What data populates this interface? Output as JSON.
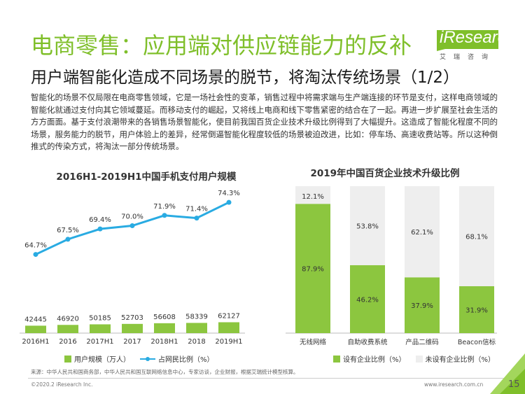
{
  "header": {
    "title": "电商零售：应用端对供应链能力的反补",
    "subtitle": "用户端智能化造成不同场景的脱节，将淘汰传统场景（1/2）",
    "logo_text": "iResearch",
    "logo_sub": "艾瑞咨询"
  },
  "body": {
    "text": "智能化的场景不仅局限在电商零售领域，它是一场社会性的变革，销售过程中将需求端与生产端连接的环节是支付，这样电商领域的智能化就通过支付向其它领域蔓延。而移动支付的崛起，又将线上电商和线下零售紧密的结合在了一起。再进一步扩展至社会生活的方方面面。基于支付浪潮带来的各销售场景智能化，使目前我国百货企业技术升级比例得到了大幅提升。这造成了智能化程度不同的场景，服务能力的脱节，用户体验上的差异，经常倒逼智能化程度较低的场景被迫改进，比如：停车场、高速收费站等。所以这种倒推式的传染方式，将淘汰一部分传统场景。"
  },
  "chart_data": [
    {
      "type": "bar+line",
      "title": "2016H1-2019H1中国手机支付用户规模",
      "categories": [
        "2016H1",
        "2016",
        "2017H1",
        "2017",
        "2018H1",
        "2018",
        "2019H1"
      ],
      "series": [
        {
          "name": "用户规模（万人）",
          "type": "bar",
          "values": [
            42445,
            46920,
            50185,
            52703,
            56608,
            58339,
            62127
          ],
          "labels": [
            "42445",
            "46920",
            "50185",
            "52703",
            "56608",
            "58339",
            "62127"
          ]
        },
        {
          "name": "占网民比例（%）",
          "type": "line",
          "values": [
            64.7,
            67.5,
            69.4,
            70.0,
            71.9,
            71.4,
            74.3
          ],
          "labels": [
            "64.7%",
            "67.5%",
            "69.4%",
            "70.0%",
            "71.9%",
            "71.4%",
            "74.3%"
          ]
        }
      ],
      "colors": {
        "bar": "#8cc63f",
        "line": "#29abe2"
      }
    },
    {
      "type": "stacked-bar",
      "title": "2019年中国百货企业技术升级比例",
      "categories": [
        "无线网络",
        "自助收费系统",
        "产品二维码",
        "Beacon信标"
      ],
      "series": [
        {
          "name": "设有企业比例（%）",
          "values": [
            87.9,
            46.2,
            37.9,
            31.9
          ],
          "labels": [
            "87.9%",
            "46.2%",
            "37.9%",
            "31.9%"
          ]
        },
        {
          "name": "未设有企业比例（%）",
          "values": [
            12.1,
            53.8,
            62.1,
            68.1
          ],
          "labels": [
            "12.1%",
            "53.8%",
            "62.1%",
            "68.1%"
          ]
        }
      ],
      "colors": {
        "yes": "#8cc63f",
        "no": "#eeeeee"
      }
    }
  ],
  "legends": {
    "left": [
      "用户规模（万人）",
      "占网民比例（%）"
    ],
    "right": [
      "设有企业比例（%）",
      "未设有企业比例（%）"
    ]
  },
  "footer": {
    "source": "来源：中华人民共和国商务部，中华人民共和国互联网络信息中心，专家访谈，企业财报，根据艾瑞统计模型核算。",
    "copyright": "©2020.2 iResearch Inc.",
    "website": "www.iresearch.com.cn",
    "page": "15"
  }
}
